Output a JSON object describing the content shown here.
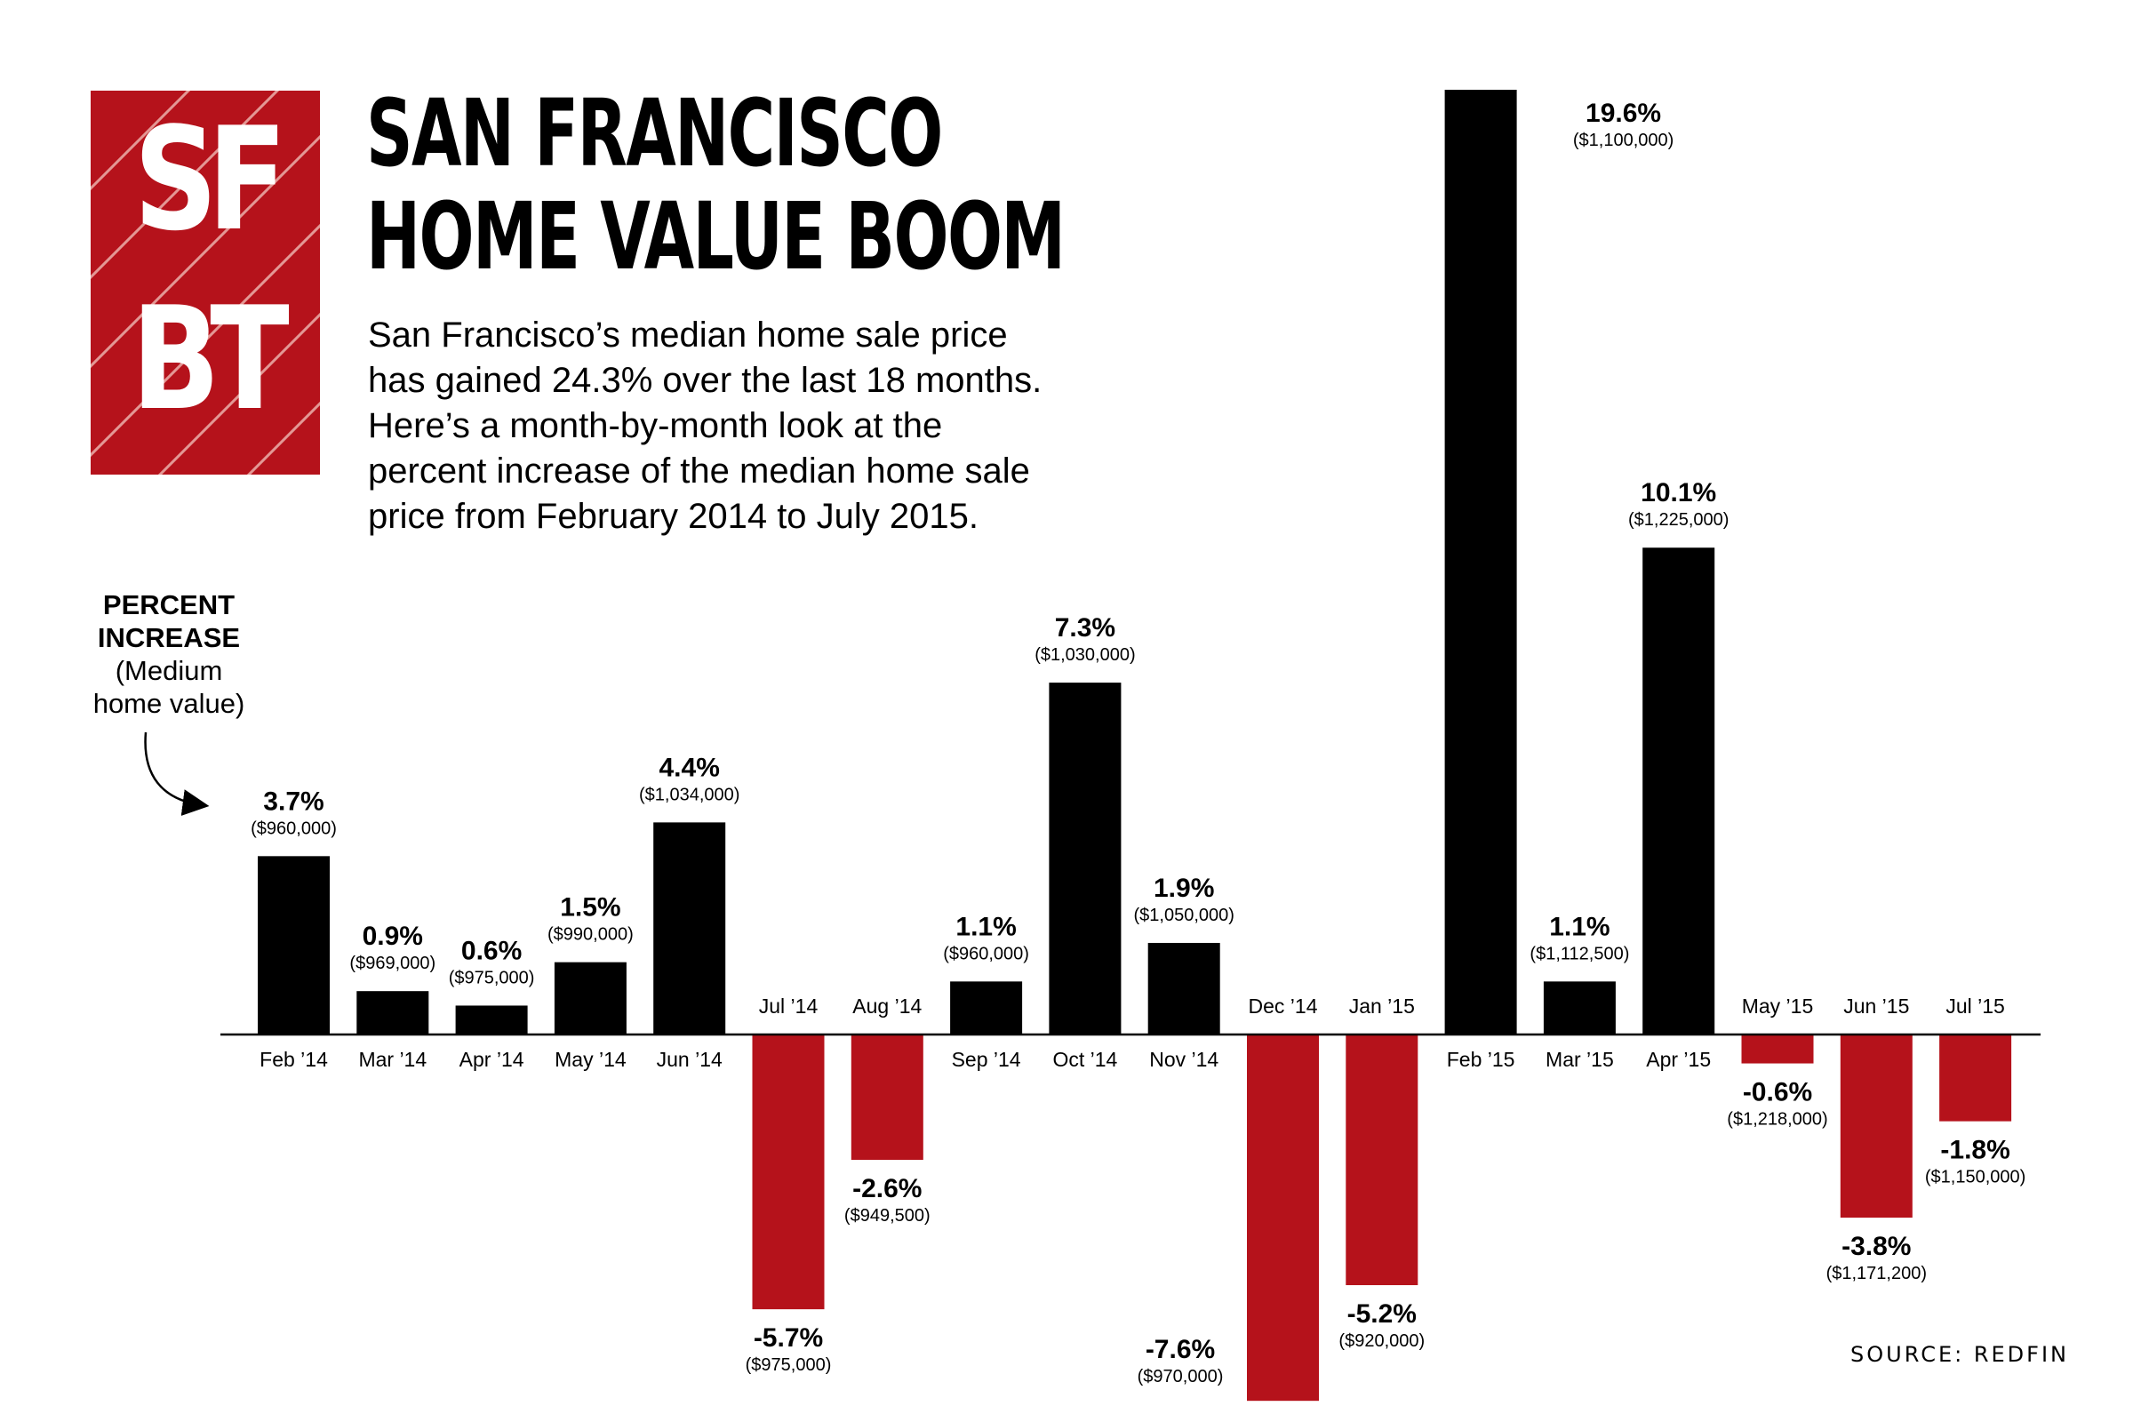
{
  "logo": {
    "line1": "SF",
    "line2": "BT"
  },
  "title": {
    "line1": "SAN FRANCISCO",
    "line2": "HOME VALUE BOOM"
  },
  "subtitle": {
    "lines": [
      "San Francisco’s median home sale price",
      "has gained 24.3% over the last 18 months.",
      "Here’s a month-by-month look at the",
      "percent increase of the median home sale",
      "price from February 2014 to July 2015."
    ]
  },
  "axis_label": {
    "line1": "PERCENT",
    "line2": "INCREASE",
    "line3": "(Medium",
    "line4": "home value)"
  },
  "source": "SOURCE: REDFIN",
  "colors": {
    "positive": "#000000",
    "negative": "#b5121b",
    "logo_bg": "#b5121b"
  },
  "chart_data": {
    "type": "bar",
    "title": "SAN FRANCISCO HOME VALUE BOOM",
    "xlabel": "",
    "ylabel": "PERCENT INCREASE (Medium home value)",
    "categories": [
      "Feb ’14",
      "Mar ’14",
      "Apr ’14",
      "May ’14",
      "Jun ’14",
      "Jul ’14",
      "Aug ’14",
      "Sep ’14",
      "Oct ’14",
      "Nov ’14",
      "Dec ’14",
      "Jan ’15",
      "Feb ’15",
      "Mar ’15",
      "Apr ’15",
      "May ’15",
      "Jun ’15",
      "Jul ’15"
    ],
    "values": [
      3.7,
      0.9,
      0.6,
      1.5,
      4.4,
      -5.7,
      -2.6,
      1.1,
      7.3,
      1.9,
      -7.6,
      -5.2,
      19.6,
      1.1,
      10.1,
      -0.6,
      -3.8,
      -1.8
    ],
    "value_labels": [
      "3.7%",
      "0.9%",
      "0.6%",
      "1.5%",
      "4.4%",
      "-5.7%",
      "-2.6%",
      "1.1%",
      "7.3%",
      "1.9%",
      "-7.6%",
      "-5.2%",
      "19.6%",
      "1.1%",
      "10.1%",
      "-0.6%",
      "-3.8%",
      "-1.8%"
    ],
    "price_labels": [
      "($960,000)",
      "($969,000)",
      "($975,000)",
      "($990,000)",
      "($1,034,000)",
      "($975,000)",
      "($949,500)",
      "($960,000)",
      "($1,030,000)",
      "($1,050,000)",
      "($970,000)",
      "($920,000)",
      "($1,100,000)",
      "($1,112,500)",
      "($1,225,000)",
      "($1,218,000)",
      "($1,171,200)",
      "($1,150,000)"
    ],
    "ylim": [
      -7.6,
      19.6
    ],
    "grid": false,
    "legend": "none"
  }
}
